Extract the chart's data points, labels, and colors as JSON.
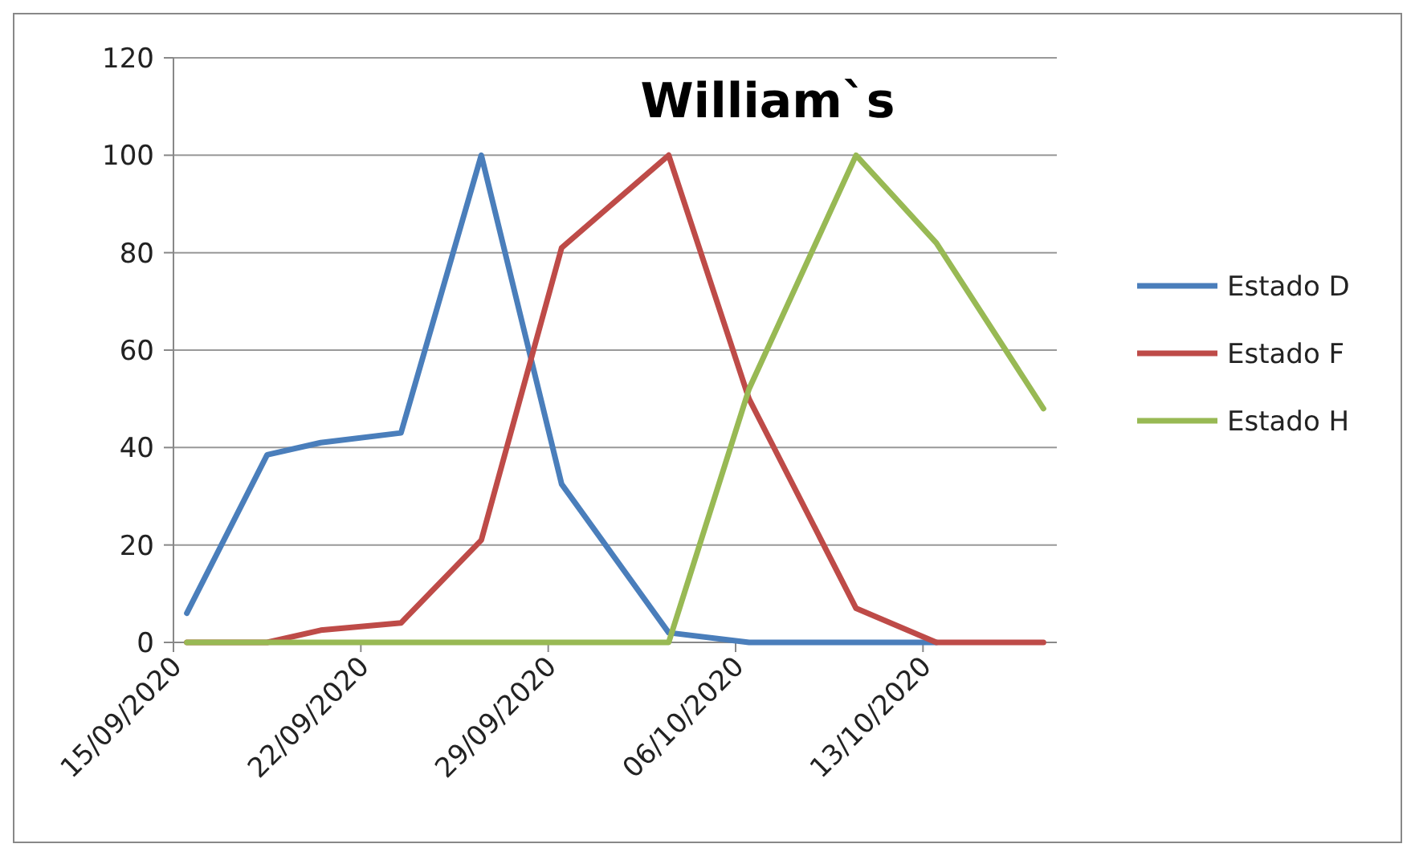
{
  "chart_data": {
    "type": "line",
    "title": "William`s",
    "x": [
      "2020-09-15T12:00",
      "2020-09-18T12:00",
      "2020-09-20T12:00",
      "2020-09-23T12:00",
      "2020-09-26T12:00",
      "2020-09-29T12:00",
      "2020-10-03T12:00",
      "2020-10-06T12:00",
      "2020-10-10T12:00",
      "2020-10-13T12:00",
      "2020-10-17T12:00"
    ],
    "series": [
      {
        "name": "Estado D",
        "color": "#4a7ebb",
        "values": [
          6,
          38.5,
          41,
          43,
          100,
          32.5,
          2,
          0,
          0,
          0,
          null
        ]
      },
      {
        "name": "Estado F",
        "color": "#be4b48",
        "values": [
          0,
          0,
          2.5,
          4,
          21,
          81,
          100,
          50,
          7,
          0,
          0
        ]
      },
      {
        "name": "Estado H",
        "color": "#98b954",
        "values": [
          0,
          0,
          0,
          0,
          0,
          0,
          0,
          52,
          100,
          82,
          48
        ]
      }
    ],
    "xlim": [
      "2020-09-15",
      "2020-10-18"
    ],
    "xticks": [
      {
        "value": "2020-09-15",
        "label": "15/09/2020"
      },
      {
        "value": "2020-09-22",
        "label": "22/09/2020"
      },
      {
        "value": "2020-09-29",
        "label": "29/09/2020"
      },
      {
        "value": "2020-10-06",
        "label": "06/10/2020"
      },
      {
        "value": "2020-10-13",
        "label": "13/10/2020"
      }
    ],
    "ylim": [
      0,
      120
    ],
    "yticks": [
      0,
      20,
      40,
      60,
      80,
      100,
      120
    ],
    "grid": "y",
    "legend": "right",
    "marker": "none",
    "line_style": "solid"
  }
}
